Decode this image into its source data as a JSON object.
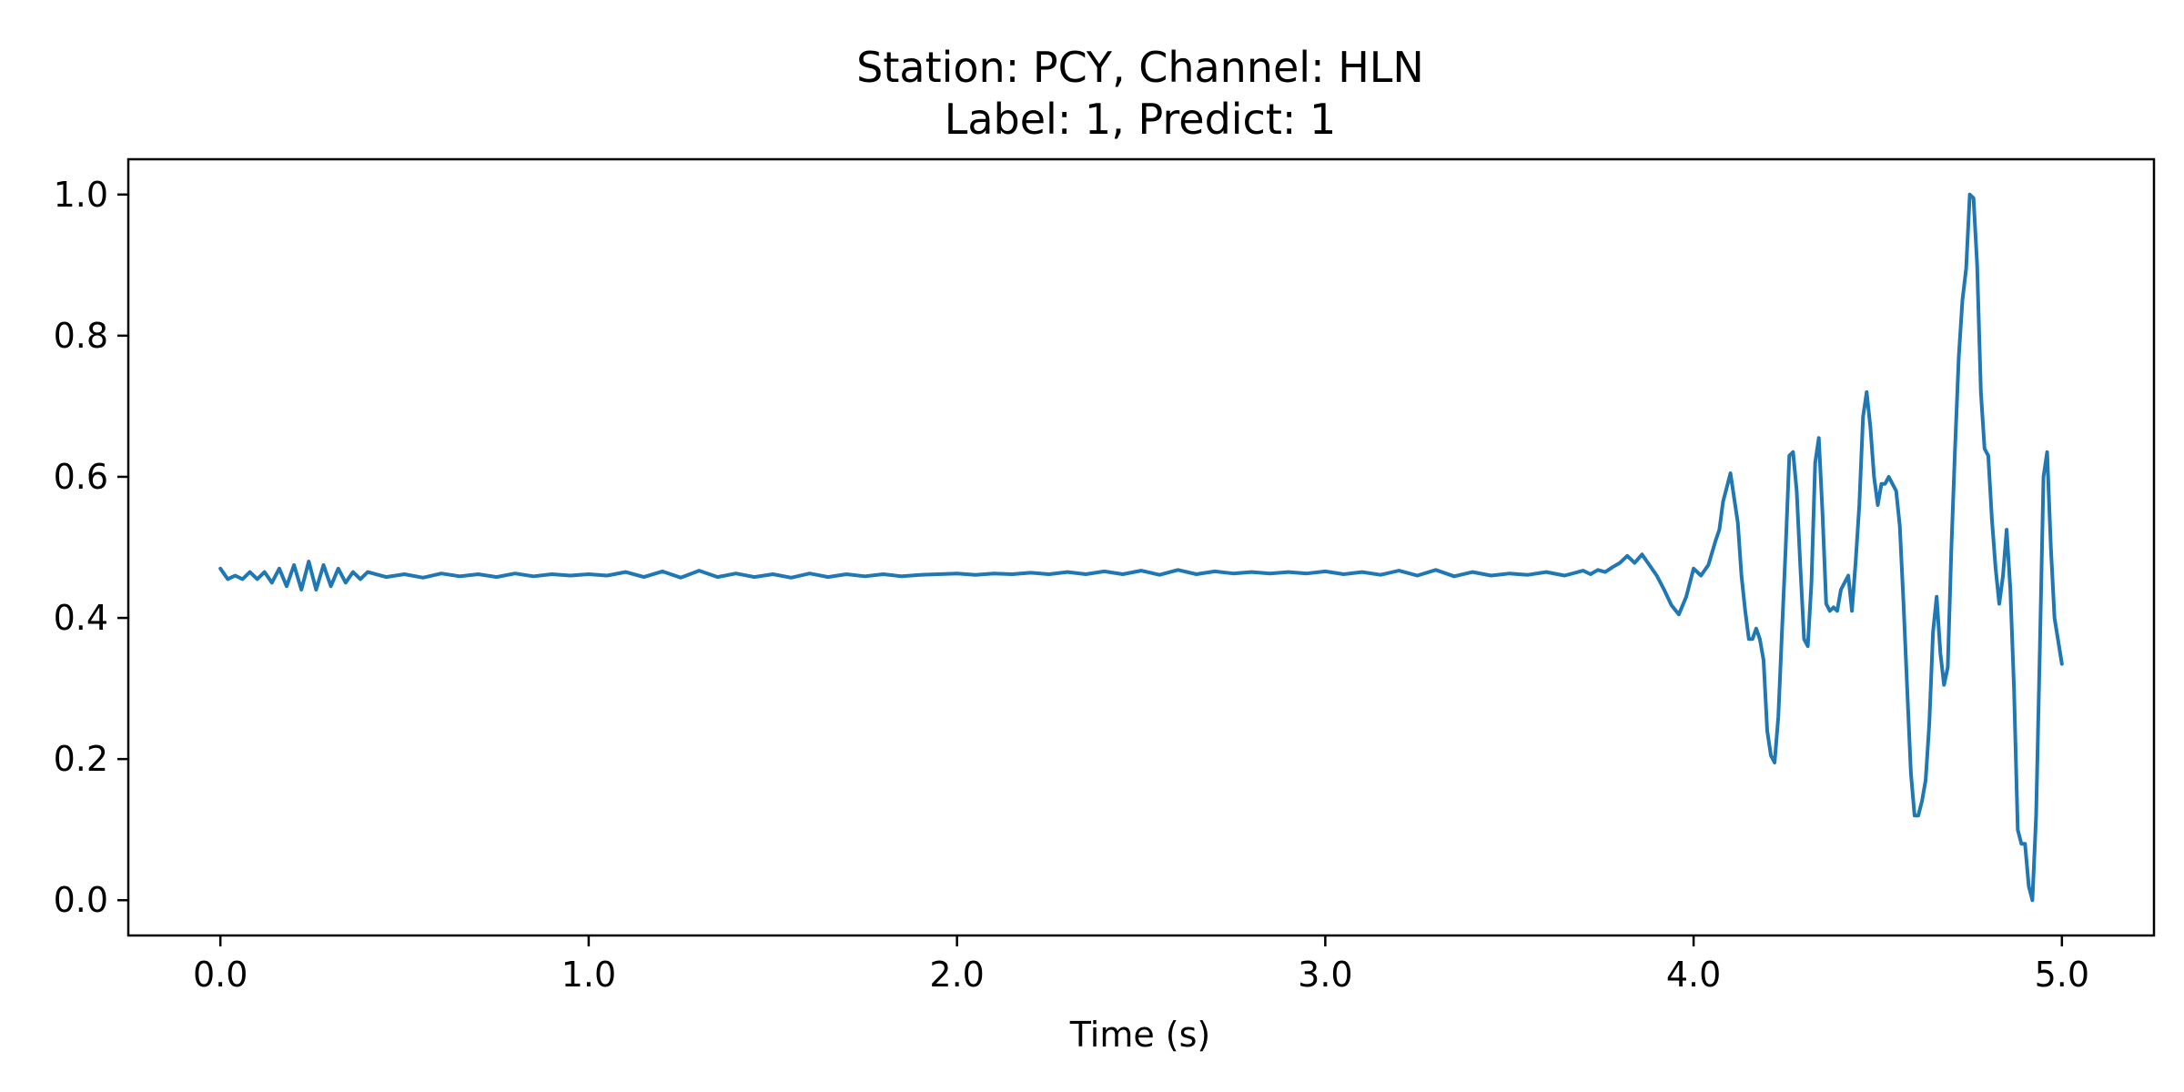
{
  "chart_data": {
    "type": "line",
    "title": "Station: PCY, Channel: HLN",
    "subtitle": "Label: 1, Predict: 1",
    "xlabel": "Time (s)",
    "ylabel": "",
    "xlim": [
      -0.25,
      5.25
    ],
    "ylim": [
      -0.05,
      1.05
    ],
    "xticks": [
      0.0,
      1.0,
      2.0,
      3.0,
      4.0,
      5.0
    ],
    "xtick_labels": [
      "0.0",
      "1.0",
      "2.0",
      "3.0",
      "4.0",
      "5.0"
    ],
    "yticks": [
      0.0,
      0.2,
      0.4,
      0.6,
      0.8,
      1.0
    ],
    "ytick_labels": [
      "0.0",
      "0.2",
      "0.4",
      "0.6",
      "0.8",
      "1.0"
    ],
    "grid": false,
    "series": [
      {
        "color": "#1f77b4",
        "points": [
          [
            0.0,
            0.47
          ],
          [
            0.02,
            0.455
          ],
          [
            0.04,
            0.46
          ],
          [
            0.06,
            0.455
          ],
          [
            0.08,
            0.465
          ],
          [
            0.1,
            0.455
          ],
          [
            0.12,
            0.465
          ],
          [
            0.14,
            0.45
          ],
          [
            0.16,
            0.47
          ],
          [
            0.18,
            0.445
          ],
          [
            0.2,
            0.475
          ],
          [
            0.22,
            0.44
          ],
          [
            0.24,
            0.48
          ],
          [
            0.26,
            0.44
          ],
          [
            0.28,
            0.475
          ],
          [
            0.3,
            0.445
          ],
          [
            0.32,
            0.47
          ],
          [
            0.34,
            0.45
          ],
          [
            0.36,
            0.465
          ],
          [
            0.38,
            0.455
          ],
          [
            0.4,
            0.465
          ],
          [
            0.45,
            0.458
          ],
          [
            0.5,
            0.462
          ],
          [
            0.55,
            0.457
          ],
          [
            0.6,
            0.463
          ],
          [
            0.65,
            0.459
          ],
          [
            0.7,
            0.462
          ],
          [
            0.75,
            0.458
          ],
          [
            0.8,
            0.463
          ],
          [
            0.85,
            0.459
          ],
          [
            0.9,
            0.462
          ],
          [
            0.95,
            0.46
          ],
          [
            1.0,
            0.462
          ],
          [
            1.05,
            0.46
          ],
          [
            1.1,
            0.465
          ],
          [
            1.15,
            0.458
          ],
          [
            1.2,
            0.466
          ],
          [
            1.25,
            0.457
          ],
          [
            1.3,
            0.467
          ],
          [
            1.35,
            0.458
          ],
          [
            1.4,
            0.463
          ],
          [
            1.45,
            0.458
          ],
          [
            1.5,
            0.462
          ],
          [
            1.55,
            0.457
          ],
          [
            1.6,
            0.463
          ],
          [
            1.65,
            0.458
          ],
          [
            1.7,
            0.462
          ],
          [
            1.75,
            0.459
          ],
          [
            1.8,
            0.462
          ],
          [
            1.85,
            0.459
          ],
          [
            1.9,
            0.461
          ],
          [
            1.95,
            0.462
          ],
          [
            2.0,
            0.463
          ],
          [
            2.05,
            0.461
          ],
          [
            2.1,
            0.463
          ],
          [
            2.15,
            0.462
          ],
          [
            2.2,
            0.464
          ],
          [
            2.25,
            0.462
          ],
          [
            2.3,
            0.465
          ],
          [
            2.35,
            0.462
          ],
          [
            2.4,
            0.466
          ],
          [
            2.45,
            0.462
          ],
          [
            2.5,
            0.467
          ],
          [
            2.55,
            0.461
          ],
          [
            2.6,
            0.468
          ],
          [
            2.65,
            0.462
          ],
          [
            2.7,
            0.466
          ],
          [
            2.75,
            0.463
          ],
          [
            2.8,
            0.465
          ],
          [
            2.85,
            0.463
          ],
          [
            2.9,
            0.465
          ],
          [
            2.95,
            0.463
          ],
          [
            3.0,
            0.466
          ],
          [
            3.05,
            0.462
          ],
          [
            3.1,
            0.465
          ],
          [
            3.15,
            0.461
          ],
          [
            3.2,
            0.467
          ],
          [
            3.25,
            0.46
          ],
          [
            3.3,
            0.468
          ],
          [
            3.35,
            0.459
          ],
          [
            3.4,
            0.465
          ],
          [
            3.45,
            0.46
          ],
          [
            3.5,
            0.463
          ],
          [
            3.55,
            0.461
          ],
          [
            3.6,
            0.465
          ],
          [
            3.65,
            0.46
          ],
          [
            3.7,
            0.467
          ],
          [
            3.72,
            0.462
          ],
          [
            3.74,
            0.468
          ],
          [
            3.76,
            0.465
          ],
          [
            3.78,
            0.472
          ],
          [
            3.8,
            0.478
          ],
          [
            3.82,
            0.488
          ],
          [
            3.84,
            0.478
          ],
          [
            3.86,
            0.49
          ],
          [
            3.88,
            0.475
          ],
          [
            3.9,
            0.46
          ],
          [
            3.92,
            0.44
          ],
          [
            3.94,
            0.418
          ],
          [
            3.96,
            0.405
          ],
          [
            3.98,
            0.43
          ],
          [
            4.0,
            0.47
          ],
          [
            4.02,
            0.46
          ],
          [
            4.04,
            0.475
          ],
          [
            4.06,
            0.51
          ],
          [
            4.07,
            0.525
          ],
          [
            4.08,
            0.565
          ],
          [
            4.1,
            0.605
          ],
          [
            4.12,
            0.535
          ],
          [
            4.13,
            0.46
          ],
          [
            4.14,
            0.41
          ],
          [
            4.15,
            0.37
          ],
          [
            4.16,
            0.37
          ],
          [
            4.17,
            0.385
          ],
          [
            4.18,
            0.37
          ],
          [
            4.19,
            0.34
          ],
          [
            4.2,
            0.24
          ],
          [
            4.21,
            0.205
          ],
          [
            4.22,
            0.195
          ],
          [
            4.23,
            0.26
          ],
          [
            4.24,
            0.38
          ],
          [
            4.25,
            0.5
          ],
          [
            4.26,
            0.63
          ],
          [
            4.27,
            0.635
          ],
          [
            4.28,
            0.58
          ],
          [
            4.29,
            0.47
          ],
          [
            4.3,
            0.37
          ],
          [
            4.31,
            0.36
          ],
          [
            4.32,
            0.45
          ],
          [
            4.33,
            0.62
          ],
          [
            4.34,
            0.655
          ],
          [
            4.35,
            0.55
          ],
          [
            4.36,
            0.42
          ],
          [
            4.37,
            0.41
          ],
          [
            4.38,
            0.415
          ],
          [
            4.39,
            0.41
          ],
          [
            4.4,
            0.44
          ],
          [
            4.41,
            0.45
          ],
          [
            4.42,
            0.46
          ],
          [
            4.43,
            0.41
          ],
          [
            4.44,
            0.48
          ],
          [
            4.45,
            0.56
          ],
          [
            4.46,
            0.685
          ],
          [
            4.47,
            0.72
          ],
          [
            4.48,
            0.67
          ],
          [
            4.49,
            0.6
          ],
          [
            4.5,
            0.56
          ],
          [
            4.51,
            0.59
          ],
          [
            4.52,
            0.59
          ],
          [
            4.53,
            0.6
          ],
          [
            4.54,
            0.59
          ],
          [
            4.55,
            0.58
          ],
          [
            4.56,
            0.53
          ],
          [
            4.57,
            0.42
          ],
          [
            4.58,
            0.3
          ],
          [
            4.59,
            0.18
          ],
          [
            4.6,
            0.12
          ],
          [
            4.61,
            0.12
          ],
          [
            4.62,
            0.14
          ],
          [
            4.63,
            0.17
          ],
          [
            4.64,
            0.25
          ],
          [
            4.65,
            0.38
          ],
          [
            4.66,
            0.43
          ],
          [
            4.67,
            0.35
          ],
          [
            4.68,
            0.305
          ],
          [
            4.69,
            0.33
          ],
          [
            4.7,
            0.5
          ],
          [
            4.71,
            0.64
          ],
          [
            4.72,
            0.77
          ],
          [
            4.73,
            0.85
          ],
          [
            4.74,
            0.895
          ],
          [
            4.75,
            1.0
          ],
          [
            4.76,
            0.995
          ],
          [
            4.77,
            0.9
          ],
          [
            4.78,
            0.72
          ],
          [
            4.79,
            0.64
          ],
          [
            4.8,
            0.63
          ],
          [
            4.81,
            0.54
          ],
          [
            4.82,
            0.47
          ],
          [
            4.83,
            0.42
          ],
          [
            4.84,
            0.46
          ],
          [
            4.85,
            0.525
          ],
          [
            4.86,
            0.44
          ],
          [
            4.87,
            0.3
          ],
          [
            4.88,
            0.1
          ],
          [
            4.89,
            0.08
          ],
          [
            4.9,
            0.08
          ],
          [
            4.91,
            0.02
          ],
          [
            4.92,
            0.0
          ],
          [
            4.93,
            0.12
          ],
          [
            4.94,
            0.35
          ],
          [
            4.95,
            0.6
          ],
          [
            4.96,
            0.635
          ],
          [
            4.97,
            0.5
          ],
          [
            4.98,
            0.4
          ],
          [
            5.0,
            0.335
          ]
        ]
      }
    ]
  }
}
